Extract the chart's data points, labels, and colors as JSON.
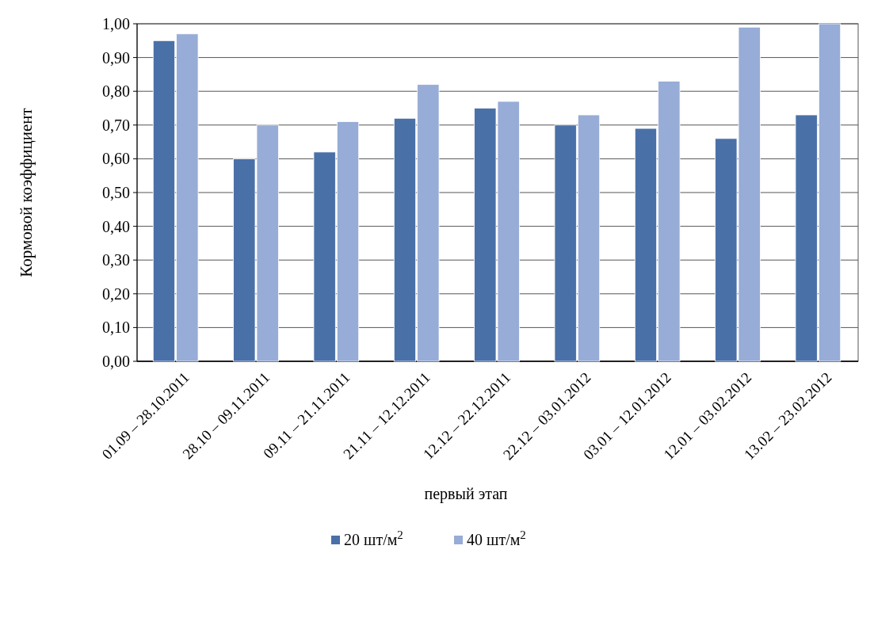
{
  "chart_data": {
    "type": "bar",
    "xlabel": "первый этап",
    "ylabel": "Кормовой коэффициент",
    "categories": [
      "01.09 – 28.10.2011",
      "28.10 – 09.11.2011",
      "09.11 – 21.11.2011",
      "21.11 – 12.12.2011",
      "12.12 – 22.12.2011",
      "22.12 – 03.01.2012",
      "03.01 – 12.01.2012",
      "12.01 – 03.02.2012",
      "13.02 – 23.02.2012"
    ],
    "series": [
      {
        "name": "20 шт/м$^{2}$",
        "color": "#4a70a8",
        "values": [
          0.95,
          0.6,
          0.62,
          0.72,
          0.75,
          0.7,
          0.69,
          0.66,
          0.73
        ]
      },
      {
        "name": "40 шт/м$^{2}$",
        "color": "#97acd6",
        "values": [
          0.97,
          0.7,
          0.71,
          0.82,
          0.77,
          0.73,
          0.83,
          0.99,
          1.0
        ]
      }
    ],
    "ylim": [
      0,
      1
    ],
    "yticks": [
      {
        "value": 0,
        "label": "0,00"
      },
      {
        "value": 0.1,
        "label": "0,10"
      },
      {
        "value": 0.2,
        "label": "0,20"
      },
      {
        "value": 0.3,
        "label": "0,30"
      },
      {
        "value": 0.4,
        "label": "0,40"
      },
      {
        "value": 0.5,
        "label": "0,50"
      },
      {
        "value": 0.6,
        "label": "0,60"
      },
      {
        "value": 0.7,
        "label": "0,70"
      },
      {
        "value": 0.8,
        "label": "0,80"
      },
      {
        "value": 0.9,
        "label": "0,90"
      },
      {
        "value": 1,
        "label": "1,00"
      }
    ],
    "grid": true,
    "legend": "bottom"
  }
}
